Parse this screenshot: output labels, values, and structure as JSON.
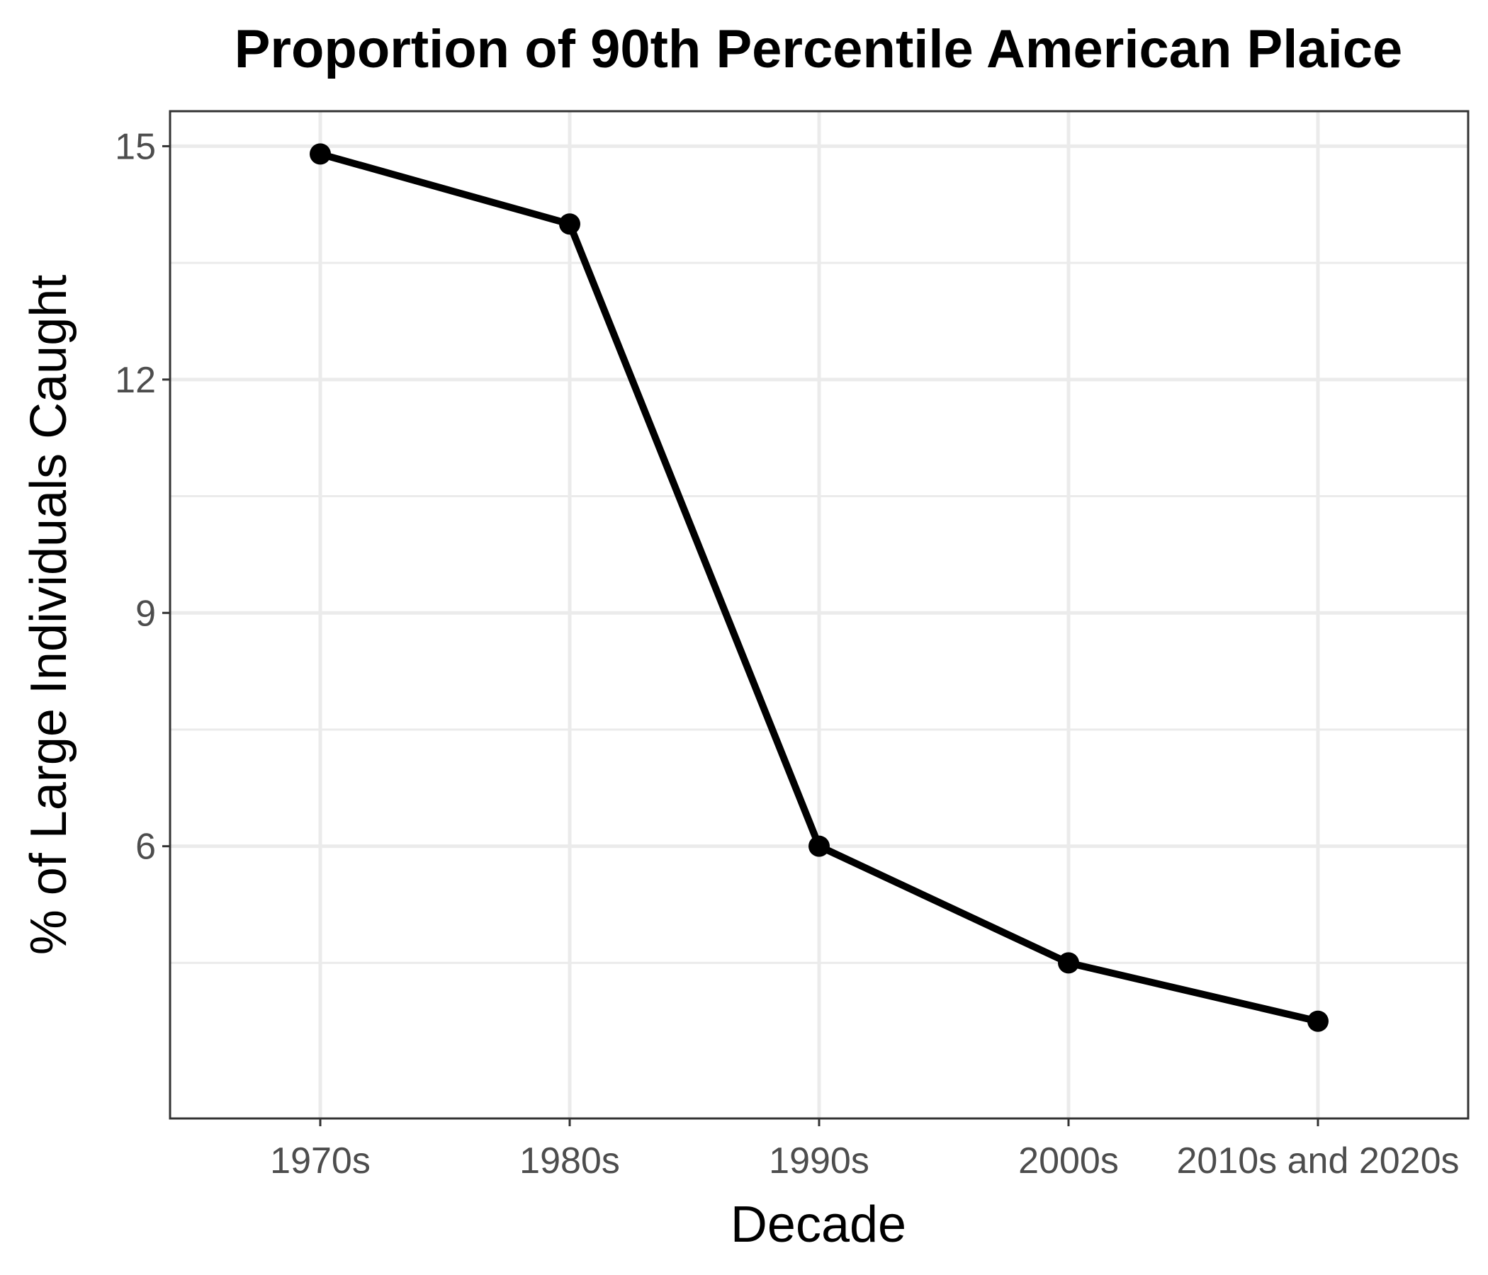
{
  "chart_data": {
    "type": "line",
    "title": "Proportion of 90th Percentile American Plaice",
    "xlabel": "Decade",
    "ylabel": "% of Large Individuals Caught",
    "categories": [
      "1970s",
      "1980s",
      "1990s",
      "2000s",
      "2010s and 2020s"
    ],
    "series": [
      {
        "values": [
          14.9,
          14.0,
          6.0,
          4.5,
          3.75
        ]
      }
    ],
    "ylim": [
      2.5,
      15.45
    ],
    "y_major_ticks": [
      6,
      9,
      12,
      15
    ],
    "y_minor_ticks": [
      4.5,
      7.5,
      10.5,
      13.5
    ],
    "grid": true,
    "legend": "none",
    "colors": {
      "line": "#000000",
      "grid": "#ebebeb",
      "tick_label": "#4d4d4d",
      "border": "#333333"
    }
  }
}
